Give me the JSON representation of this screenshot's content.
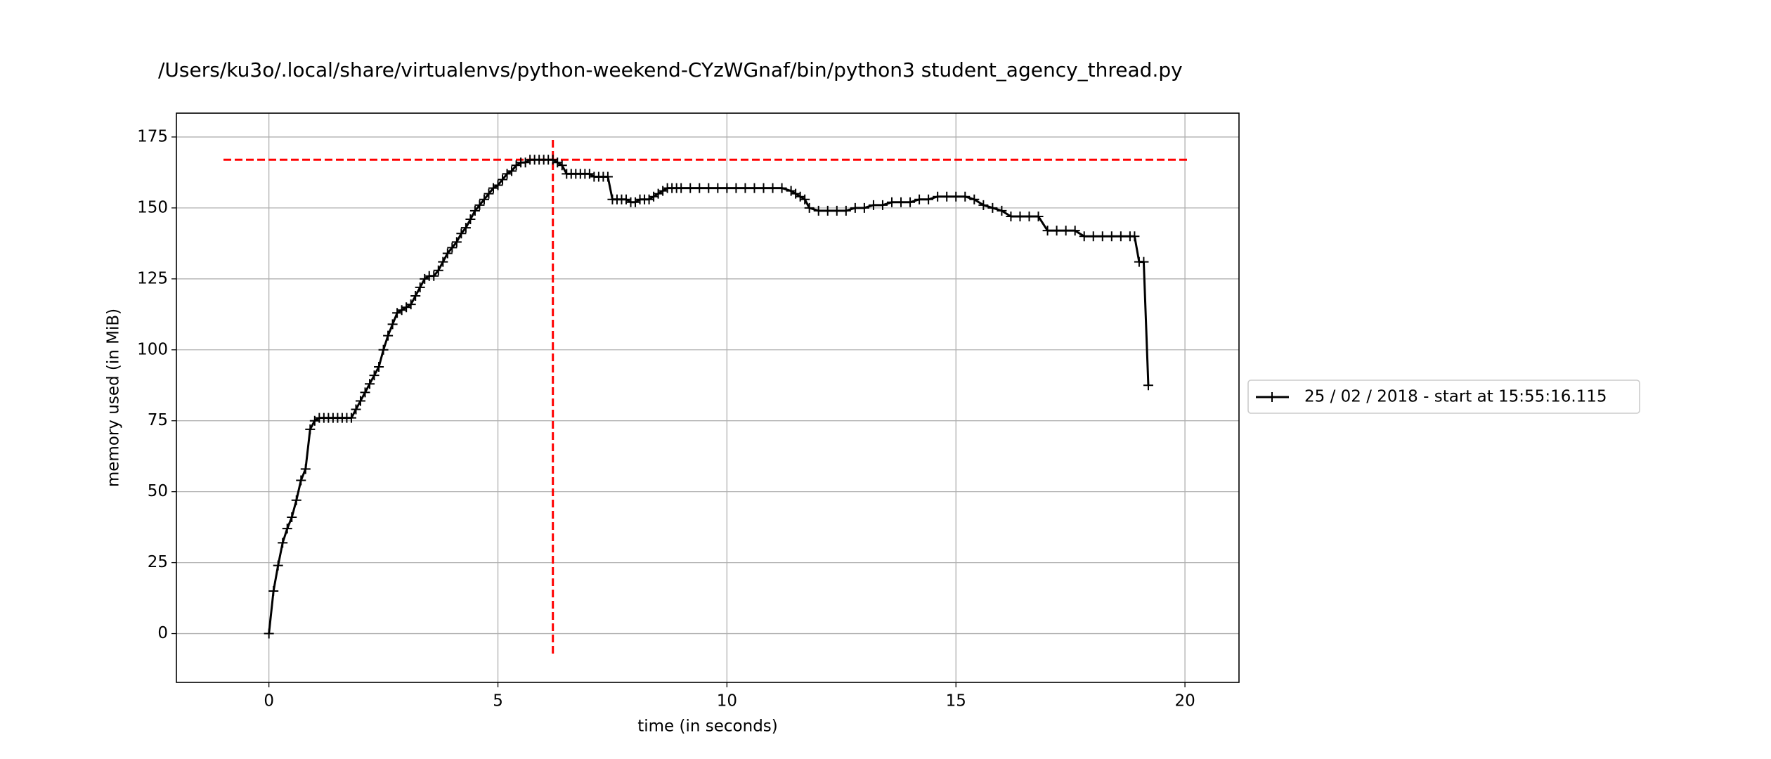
{
  "chart_data": {
    "type": "line",
    "title": "/Users/ku3o/.local/share/virtualenvs/python-weekend-CYzWGnaf/bin/python3 student_agency_thread.py",
    "xlabel": "time (in seconds)",
    "ylabel": "memory used (in MiB)",
    "x": [
      0,
      0.1,
      0.2,
      0.3,
      0.4,
      0.5,
      0.6,
      0.7,
      0.8,
      0.9,
      1.0,
      1.1,
      1.2,
      1.3,
      1.4,
      1.5,
      1.6,
      1.7,
      1.8,
      1.9,
      2.0,
      2.1,
      2.2,
      2.3,
      2.4,
      2.5,
      2.6,
      2.7,
      2.8,
      2.9,
      3.0,
      3.1,
      3.2,
      3.3,
      3.4,
      3.5,
      3.6,
      3.7,
      3.8,
      3.9,
      4.0,
      4.1,
      4.2,
      4.3,
      4.4,
      4.5,
      4.6,
      4.7,
      4.8,
      4.9,
      5.0,
      5.1,
      5.2,
      5.3,
      5.4,
      5.5,
      5.6,
      5.7,
      5.8,
      5.9,
      6.0,
      6.1,
      6.2,
      6.3,
      6.4,
      6.5,
      6.6,
      6.7,
      6.8,
      6.9,
      7.0,
      7.1,
      7.2,
      7.3,
      7.4,
      7.5,
      7.6,
      7.7,
      7.8,
      7.9,
      8.0,
      8.1,
      8.2,
      8.3,
      8.4,
      8.5,
      8.6,
      8.7,
      8.8,
      8.9,
      9.0,
      9.2,
      9.4,
      9.6,
      9.8,
      10.0,
      10.2,
      10.4,
      10.6,
      10.8,
      11.0,
      11.2,
      11.4,
      11.5,
      11.6,
      11.7,
      11.8,
      12.0,
      12.2,
      12.4,
      12.6,
      12.8,
      13.0,
      13.2,
      13.4,
      13.6,
      13.8,
      14.0,
      14.2,
      14.4,
      14.6,
      14.8,
      15.0,
      15.2,
      15.4,
      15.6,
      15.8,
      16.0,
      16.2,
      16.4,
      16.6,
      16.8,
      17.0,
      17.2,
      17.4,
      17.6,
      17.8,
      18.0,
      18.2,
      18.4,
      18.6,
      18.8,
      18.9,
      19.0,
      19.1,
      19.2
    ],
    "series": [
      {
        "name": "25 / 02 / 2018 - start at 15:55:16.115",
        "color": "#000000",
        "values": [
          0,
          15,
          24,
          32,
          37,
          41,
          47,
          54,
          58,
          72,
          75,
          76,
          76,
          76,
          76,
          76,
          76,
          76,
          76,
          79,
          82,
          85,
          88,
          91,
          94,
          100,
          105,
          109,
          113,
          114,
          115,
          116,
          119,
          122,
          125,
          126,
          126,
          128,
          131,
          134,
          136,
          138,
          141,
          143,
          146,
          149,
          151,
          153,
          155,
          157,
          158,
          160,
          162,
          163,
          165,
          166,
          166,
          167,
          167,
          167,
          167,
          167,
          167,
          166,
          165,
          162,
          162,
          162,
          162,
          162,
          162,
          161,
          161,
          161,
          161,
          153,
          153,
          153,
          153,
          152,
          152,
          153,
          153,
          153,
          154,
          155,
          156,
          157,
          157,
          157,
          157,
          157,
          157,
          157,
          157,
          157,
          157,
          157,
          157,
          157,
          157,
          157,
          156,
          155,
          154,
          153,
          150,
          149,
          149,
          149,
          149,
          150,
          150,
          151,
          151,
          152,
          152,
          152,
          153,
          153,
          154,
          154,
          154,
          154,
          153,
          151,
          150,
          149,
          147,
          147,
          147,
          147,
          142,
          142,
          142,
          142,
          140,
          140,
          140,
          140,
          140,
          140,
          140,
          131,
          131,
          87.5
        ]
      }
    ],
    "peak": {
      "x": 6.2,
      "y": 167,
      "color": "#ff0000"
    },
    "xlim": [
      -2.02,
      21.18
    ],
    "ylim": [
      -17.2,
      183.4
    ],
    "xticks": [
      0,
      5,
      10,
      15,
      20
    ],
    "yticks": [
      0,
      25,
      50,
      75,
      100,
      125,
      150,
      175
    ],
    "grid": true,
    "legend": "right"
  }
}
